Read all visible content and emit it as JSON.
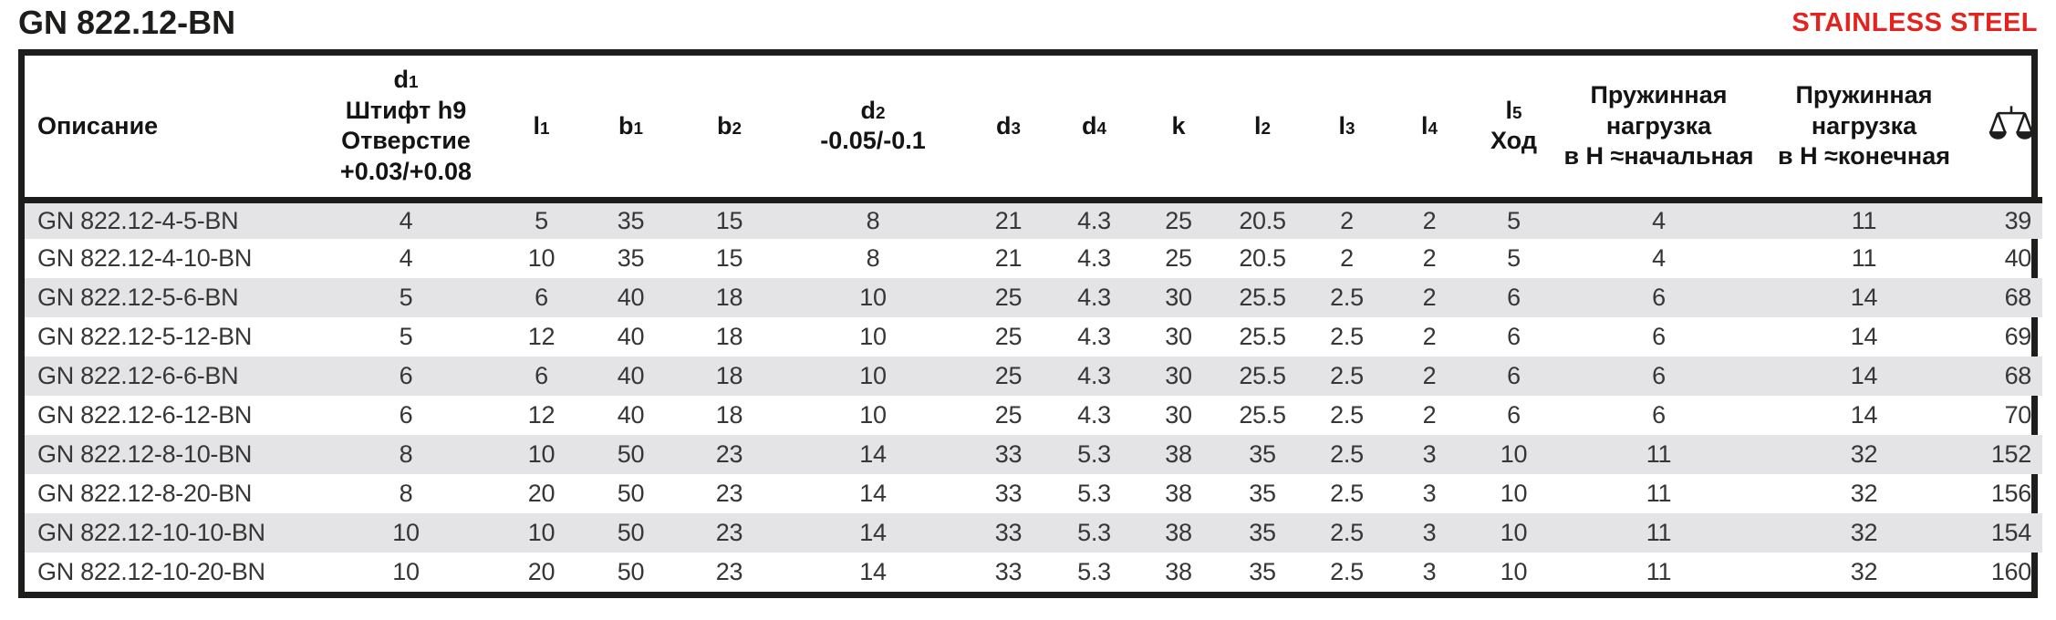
{
  "page": {
    "title": "GN 822.12-BN",
    "material_label": "STAINLESS STEEL"
  },
  "colors": {
    "accent_red": "#e3231d",
    "zebra_gray": "#e4e4e6",
    "border_black": "#1d1d1b"
  },
  "table": {
    "columns": [
      {
        "id": "description",
        "label": "Описание",
        "align": "left"
      },
      {
        "id": "d1",
        "symbol": "d",
        "subscript": "1",
        "lines": [
          "Штифт h9",
          "Отверстие",
          "+0.03/+0.08"
        ]
      },
      {
        "id": "l1",
        "symbol": "l",
        "subscript": "1"
      },
      {
        "id": "b1",
        "symbol": "b",
        "subscript": "1"
      },
      {
        "id": "b2",
        "symbol": "b",
        "subscript": "2"
      },
      {
        "id": "d2",
        "symbol": "d",
        "subscript": "2",
        "lines": [
          "-0.05/-0.1"
        ]
      },
      {
        "id": "d3",
        "symbol": "d",
        "subscript": "3"
      },
      {
        "id": "d4",
        "symbol": "d",
        "subscript": "4"
      },
      {
        "id": "k",
        "symbol": "k"
      },
      {
        "id": "l2",
        "symbol": "l",
        "subscript": "2"
      },
      {
        "id": "l3",
        "symbol": "l",
        "subscript": "3"
      },
      {
        "id": "l4",
        "symbol": "l",
        "subscript": "4"
      },
      {
        "id": "l5",
        "symbol": "l",
        "subscript": "5",
        "lines": [
          "Ход"
        ]
      },
      {
        "id": "spring_initial",
        "lines": [
          "Пружинная",
          "нагрузка",
          "в H ≈начальная"
        ]
      },
      {
        "id": "spring_final",
        "lines": [
          "Пружинная",
          "нагрузка",
          "в H ≈конечная"
        ]
      },
      {
        "id": "weight",
        "icon": "scales-icon",
        "align": "right"
      }
    ],
    "rows": [
      [
        "GN 822.12-4-5-BN",
        "4",
        "5",
        "35",
        "15",
        "8",
        "21",
        "4.3",
        "25",
        "20.5",
        "2",
        "2",
        "5",
        "4",
        "11",
        "39"
      ],
      [
        "GN 822.12-4-10-BN",
        "4",
        "10",
        "35",
        "15",
        "8",
        "21",
        "4.3",
        "25",
        "20.5",
        "2",
        "2",
        "5",
        "4",
        "11",
        "40"
      ],
      [
        "GN 822.12-5-6-BN",
        "5",
        "6",
        "40",
        "18",
        "10",
        "25",
        "4.3",
        "30",
        "25.5",
        "2.5",
        "2",
        "6",
        "6",
        "14",
        "68"
      ],
      [
        "GN 822.12-5-12-BN",
        "5",
        "12",
        "40",
        "18",
        "10",
        "25",
        "4.3",
        "30",
        "25.5",
        "2.5",
        "2",
        "6",
        "6",
        "14",
        "69"
      ],
      [
        "GN 822.12-6-6-BN",
        "6",
        "6",
        "40",
        "18",
        "10",
        "25",
        "4.3",
        "30",
        "25.5",
        "2.5",
        "2",
        "6",
        "6",
        "14",
        "68"
      ],
      [
        "GN 822.12-6-12-BN",
        "6",
        "12",
        "40",
        "18",
        "10",
        "25",
        "4.3",
        "30",
        "25.5",
        "2.5",
        "2",
        "6",
        "6",
        "14",
        "70"
      ],
      [
        "GN 822.12-8-10-BN",
        "8",
        "10",
        "50",
        "23",
        "14",
        "33",
        "5.3",
        "38",
        "35",
        "2.5",
        "3",
        "10",
        "11",
        "32",
        "152"
      ],
      [
        "GN 822.12-8-20-BN",
        "8",
        "20",
        "50",
        "23",
        "14",
        "33",
        "5.3",
        "38",
        "35",
        "2.5",
        "3",
        "10",
        "11",
        "32",
        "156"
      ],
      [
        "GN 822.12-10-10-BN",
        "10",
        "10",
        "50",
        "23",
        "14",
        "33",
        "5.3",
        "38",
        "35",
        "2.5",
        "3",
        "10",
        "11",
        "32",
        "154"
      ],
      [
        "GN 822.12-10-20-BN",
        "10",
        "20",
        "50",
        "23",
        "14",
        "33",
        "5.3",
        "38",
        "35",
        "2.5",
        "3",
        "10",
        "11",
        "32",
        "160"
      ]
    ]
  }
}
